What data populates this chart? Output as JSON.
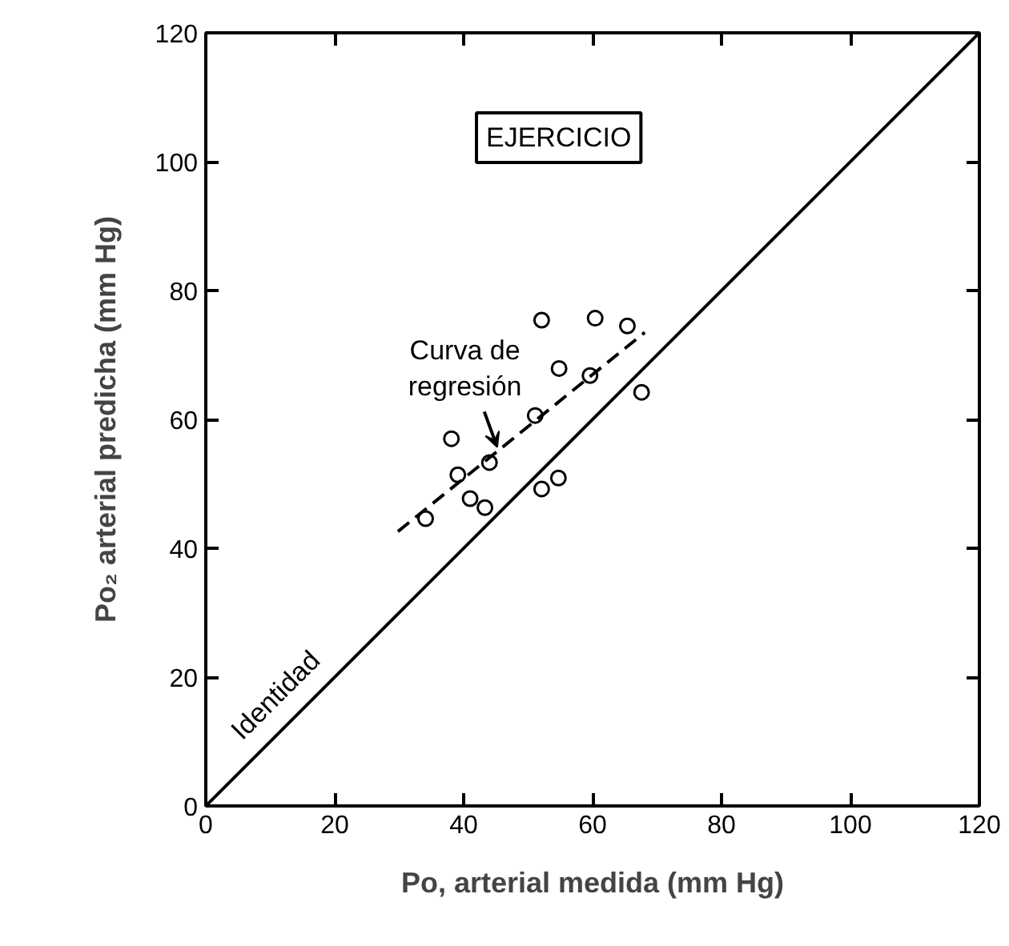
{
  "chart_data": {
    "type": "scatter",
    "xlabel": "Po, arterial medida (mm Hg)",
    "ylabel": "Po₂ arterial predicha (mm Hg)",
    "xlim": [
      0,
      120
    ],
    "ylim": [
      0,
      120
    ],
    "xticks": [
      0,
      20,
      40,
      60,
      80,
      100,
      120
    ],
    "yticks": [
      0,
      20,
      40,
      60,
      80,
      100,
      120
    ],
    "grid": false,
    "series": [
      {
        "color": "#000000",
        "marker": "circle",
        "x": [
          38.1,
          39.1,
          34.1,
          41.0,
          43.3,
          44.0,
          51.1,
          52.1,
          52.1,
          54.7,
          54.8,
          59.6,
          60.4,
          65.4,
          67.6
        ],
        "values": [
          57.0,
          51.4,
          44.6,
          47.7,
          46.3,
          53.3,
          60.6,
          75.4,
          49.2,
          50.9,
          67.9,
          66.8,
          75.7,
          74.5,
          64.2
        ]
      },
      {
        "type": "line",
        "color": "#000000",
        "line_style": "solid",
        "x": [
          0,
          120
        ],
        "values": [
          0,
          120
        ]
      },
      {
        "type": "line",
        "color": "#000000",
        "line_style": "dashed",
        "x": [
          29.8,
          68.1
        ],
        "values": [
          42.6,
          73.5
        ]
      }
    ],
    "annotations": [
      "EJERCICIO",
      {
        "text": "Curva de regresión",
        "x": 45.2,
        "y": 55.7
      },
      {
        "text": "Identidad",
        "x": 14,
        "y": 14
      }
    ]
  }
}
